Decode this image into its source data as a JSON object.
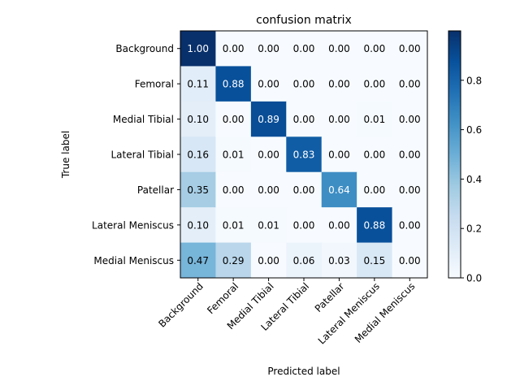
{
  "chart_data": {
    "type": "heatmap",
    "title": "confusion matrix",
    "xlabel": "Predicted label",
    "ylabel": "True label",
    "rows": [
      "Background",
      "Femoral",
      "Medial Tibial",
      "Lateral Tibial",
      "Patellar",
      "Lateral Meniscus",
      "Medial Meniscus"
    ],
    "cols": [
      "Background",
      "Femoral",
      "Medial Tibial",
      "Lateral Tibial",
      "Patellar",
      "Lateral Meniscus",
      "Medial Meniscus"
    ],
    "values": [
      [
        1.0,
        0.0,
        0.0,
        0.0,
        0.0,
        0.0,
        0.0
      ],
      [
        0.11,
        0.88,
        0.0,
        0.0,
        0.0,
        0.0,
        0.0
      ],
      [
        0.1,
        0.0,
        0.89,
        0.0,
        0.0,
        0.01,
        0.0
      ],
      [
        0.16,
        0.01,
        0.0,
        0.83,
        0.0,
        0.0,
        0.0
      ],
      [
        0.35,
        0.0,
        0.0,
        0.0,
        0.64,
        0.0,
        0.0
      ],
      [
        0.1,
        0.01,
        0.01,
        0.0,
        0.0,
        0.88,
        0.0
      ],
      [
        0.47,
        0.29,
        0.0,
        0.06,
        0.03,
        0.15,
        0.0
      ]
    ],
    "colorbar": {
      "min": 0.0,
      "max": 1.0,
      "ticks": [
        0.0,
        0.2,
        0.4,
        0.6,
        0.8
      ],
      "tick_labels": [
        "0.0",
        "0.2",
        "0.4",
        "0.6",
        "0.8"
      ]
    },
    "colormap": "Blues",
    "grid": false,
    "legend": "none"
  }
}
